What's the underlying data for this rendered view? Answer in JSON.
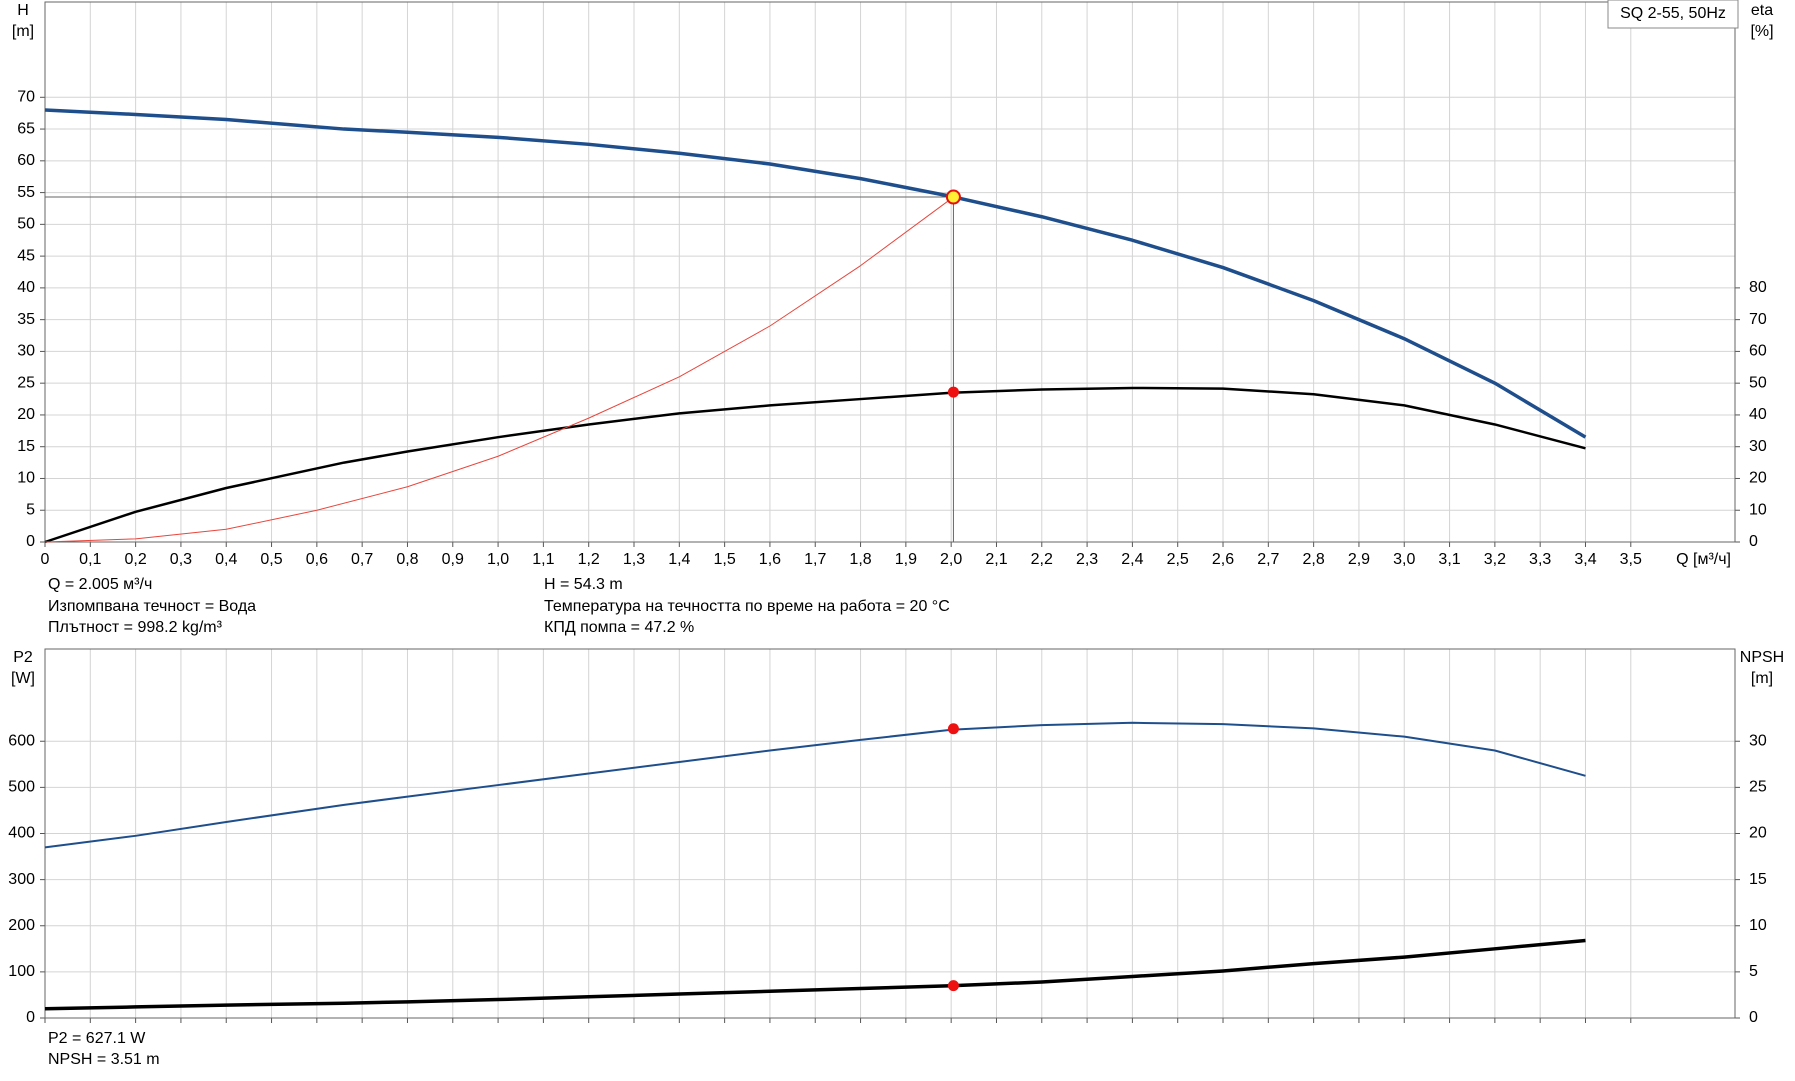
{
  "chart_data": [
    {
      "type": "line",
      "label": "SQ 2-55, 50Hz",
      "ylabel": [
        "H",
        "[m]"
      ],
      "y2label": [
        "eta",
        "[%]"
      ],
      "xlabel": "Q [м³/ч]",
      "xlim": [
        0,
        3.73
      ],
      "ylim": [
        0,
        85
      ],
      "y2lim": [
        0,
        170
      ],
      "grid": true,
      "xticks": [
        0,
        {
          "value": 0.1,
          "label": "0,1"
        },
        {
          "value": 0.2,
          "label": "0,2"
        },
        {
          "value": 0.3,
          "label": "0,3"
        },
        {
          "value": 0.4,
          "label": "0,4"
        },
        {
          "value": 0.5,
          "label": "0,5"
        },
        {
          "value": 0.6,
          "label": "0,6"
        },
        {
          "value": 0.7,
          "label": "0,7"
        },
        {
          "value": 0.8,
          "label": "0,8"
        },
        {
          "value": 0.9,
          "label": "0,9"
        },
        {
          "value": 1.0,
          "label": "1,0"
        },
        {
          "value": 1.1,
          "label": "1,1"
        },
        {
          "value": 1.2,
          "label": "1,2"
        },
        {
          "value": 1.3,
          "label": "1,3"
        },
        {
          "value": 1.4,
          "label": "1,4"
        },
        {
          "value": 1.5,
          "label": "1,5"
        },
        {
          "value": 1.6,
          "label": "1,6"
        },
        {
          "value": 1.7,
          "label": "1,7"
        },
        {
          "value": 1.8,
          "label": "1,8"
        },
        {
          "value": 1.9,
          "label": "1,9"
        },
        {
          "value": 2.0,
          "label": "2,0"
        },
        {
          "value": 2.1,
          "label": "2,1"
        },
        {
          "value": 2.2,
          "label": "2,2"
        },
        {
          "value": 2.3,
          "label": "2,3"
        },
        {
          "value": 2.4,
          "label": "2,4"
        },
        {
          "value": 2.5,
          "label": "2,5"
        },
        {
          "value": 2.6,
          "label": "2,6"
        },
        {
          "value": 2.7,
          "label": "2,7"
        },
        {
          "value": 2.8,
          "label": "2,8"
        },
        {
          "value": 2.9,
          "label": "2,9"
        },
        {
          "value": 3.0,
          "label": "3,0"
        },
        {
          "value": 3.1,
          "label": "3,1"
        },
        {
          "value": 3.2,
          "label": "3,2"
        },
        {
          "value": 3.3,
          "label": "3,3"
        },
        {
          "value": 3.4,
          "label": "3,4"
        },
        {
          "value": 3.5,
          "label": "3,5"
        }
      ],
      "yticks": [
        0,
        5,
        10,
        15,
        20,
        25,
        30,
        35,
        40,
        45,
        50,
        55,
        60,
        65,
        70
      ],
      "y2ticks": [
        0,
        10,
        20,
        30,
        40,
        50,
        60,
        70,
        80
      ],
      "series": [
        {
          "color": "#1f4e8c",
          "line_width": 3.5,
          "x": [
            0,
            0.2,
            0.4,
            0.66,
            0.8,
            1.0,
            1.2,
            1.4,
            1.6,
            1.8,
            2.0,
            2.2,
            2.4,
            2.6,
            2.8,
            3.0,
            3.2,
            3.4
          ],
          "values": [
            68,
            67.3,
            66.5,
            65,
            64.5,
            63.7,
            62.6,
            61.2,
            59.5,
            57.2,
            54.4,
            51.2,
            47.5,
            43.2,
            38,
            32,
            25,
            16.5
          ]
        },
        {
          "color": "#000000",
          "line_width": 2.5,
          "axis": "y2",
          "x": [
            0,
            0.2,
            0.4,
            0.66,
            0.8,
            1.0,
            1.2,
            1.4,
            1.6,
            1.8,
            2.0,
            2.2,
            2.4,
            2.6,
            2.8,
            3.0,
            3.2,
            3.4
          ],
          "values": [
            0,
            9.5,
            17,
            25,
            28.5,
            33,
            37,
            40.5,
            43,
            45,
            47,
            48,
            48.5,
            48.3,
            46.5,
            43,
            37,
            29.5
          ]
        },
        {
          "color": "#e8463c",
          "line_width": 1,
          "x": [
            0,
            0.2,
            0.4,
            0.6,
            0.8,
            1.0,
            1.2,
            1.4,
            1.6,
            1.8,
            2.005
          ],
          "values": [
            0,
            0.5,
            2,
            5,
            8.7,
            13.5,
            19.5,
            26,
            34,
            43.5,
            54.3
          ]
        }
      ],
      "operating_point": {
        "x": 2.005,
        "y": 54.3,
        "y2": 47.2
      },
      "annotations": [
        "Q = 2.005 м³/ч",
        "Изпомпвана течност = Вода",
        "Плътност = 998.2 kg/m³",
        "H = 54.3 m",
        "Температура на течността по време на работа = 20 °C",
        "КПД помпа = 47.2 %"
      ]
    },
    {
      "type": "line",
      "ylabel": [
        "P2",
        "[W]"
      ],
      "y2label": [
        "NPSH",
        "[m]"
      ],
      "xlim": [
        0,
        3.73
      ],
      "ylim": [
        0,
        800
      ],
      "y2lim": [
        0,
        40
      ],
      "grid": true,
      "xticks": [
        0,
        0.1,
        0.2,
        0.3,
        0.4,
        0.5,
        0.6,
        0.7,
        0.8,
        0.9,
        1,
        1.1,
        1.2,
        1.3,
        1.4,
        1.5,
        1.6,
        1.7,
        1.8,
        1.9,
        2,
        2.1,
        2.2,
        2.3,
        2.4,
        2.5,
        2.6,
        2.7,
        2.8,
        2.9,
        3,
        3.1,
        3.2,
        3.3,
        3.4,
        3.5
      ],
      "yticks": [
        0,
        100,
        200,
        300,
        400,
        500,
        600
      ],
      "y2ticks": [
        0,
        5,
        10,
        15,
        20,
        25,
        30
      ],
      "series": [
        {
          "color": "#1f4e8c",
          "line_width": 2,
          "x": [
            0,
            0.2,
            0.4,
            0.66,
            0.8,
            1.0,
            1.2,
            1.4,
            1.6,
            1.8,
            2.0,
            2.2,
            2.4,
            2.6,
            2.8,
            3.0,
            3.2,
            3.4
          ],
          "values": [
            370,
            395,
            425,
            462,
            480,
            505,
            530,
            555,
            580,
            603,
            625,
            635,
            640,
            637,
            628,
            610,
            580,
            525
          ]
        },
        {
          "color": "#000000",
          "line_width": 3.5,
          "axis": "y2",
          "x": [
            0,
            0.2,
            0.4,
            0.66,
            0.8,
            1.0,
            1.2,
            1.4,
            1.6,
            1.8,
            2.0,
            2.2,
            2.4,
            2.6,
            2.8,
            3.0,
            3.2,
            3.4
          ],
          "values": [
            1,
            1.2,
            1.4,
            1.6,
            1.75,
            2,
            2.3,
            2.6,
            2.9,
            3.2,
            3.5,
            3.9,
            4.5,
            5.1,
            5.9,
            6.6,
            7.5,
            8.4
          ]
        }
      ],
      "operating_point": {
        "x": 2.005,
        "y": 627.1,
        "y2": 3.51
      },
      "annotations": [
        "P2 = 627.1 W",
        "NPSH = 3.51 m"
      ]
    }
  ]
}
